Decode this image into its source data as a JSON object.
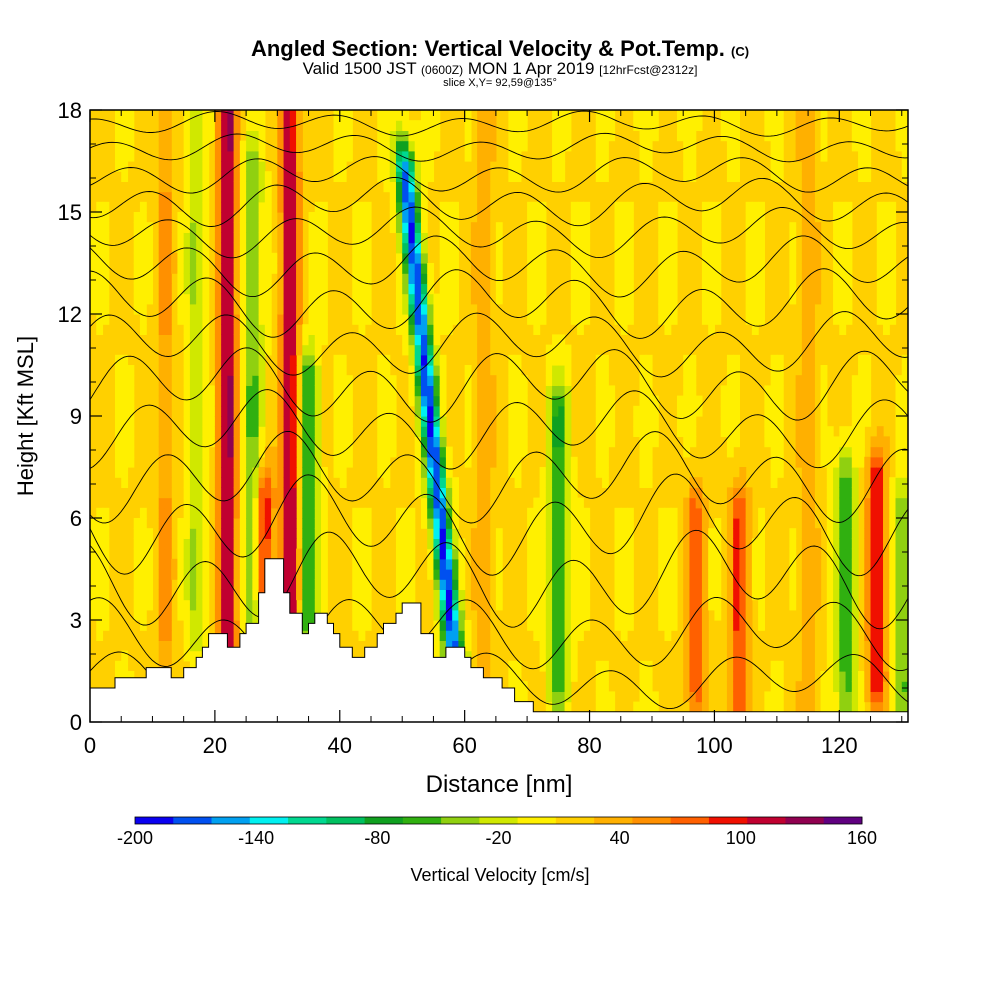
{
  "header": {
    "title_main": "Angled Section: Vertical Velocity & Pot.Temp.",
    "title_suffix": "(C)",
    "subtitle_a": "Valid 1500 JST",
    "subtitle_b": "(0600Z)",
    "subtitle_c": "MON 1 Apr 2019",
    "subtitle_d": "[12hrFcst@2312z]",
    "slice_label": "slice X,Y= 92,59@135°"
  },
  "chart_data": {
    "type": "heatmap",
    "xlabel": "Distance [nm]",
    "ylabel": "Height [Kft MSL]",
    "xlim": [
      0,
      131
    ],
    "ylim": [
      0,
      18
    ],
    "x_ticks": [
      "0",
      "20",
      "40",
      "60",
      "80",
      "100",
      "120"
    ],
    "y_ticks": [
      "0",
      "3",
      "6",
      "9",
      "12",
      "15",
      "18"
    ],
    "colorbar": {
      "label": "Vertical Velocity [cm/s]",
      "range": [
        -200,
        160
      ],
      "ticks": [
        "-200",
        "-140",
        "-80",
        "-20",
        "40",
        "100",
        "160"
      ],
      "colors": [
        "#0a00f0",
        "#0050f0",
        "#00a0f0",
        "#00f0f0",
        "#00d890",
        "#00c060",
        "#10a020",
        "#30b010",
        "#90d010",
        "#d0e800",
        "#fff000",
        "#ffd000",
        "#ffb000",
        "#ff9000",
        "#ff6000",
        "#f01000",
        "#c00030",
        "#900050",
        "#600080"
      ]
    },
    "updrafts": [
      {
        "x": 22,
        "z0": 2.5,
        "z1": 18,
        "peak": 120
      },
      {
        "x": 32,
        "z0": 3,
        "z1": 18,
        "peak": 110
      },
      {
        "x": 28,
        "z0": 4,
        "z1": 6.5,
        "peak": 90
      },
      {
        "x": 97,
        "z0": 1,
        "z1": 6,
        "peak": 70
      },
      {
        "x": 104,
        "z0": 0.5,
        "z1": 6,
        "peak": 80
      },
      {
        "x": 126,
        "z0": 1.5,
        "z1": 7,
        "peak": 100
      },
      {
        "x": 12,
        "z0": 1.5,
        "z1": 18,
        "peak": 40
      },
      {
        "x": 63,
        "z0": 2,
        "z1": 18,
        "peak": 35
      },
      {
        "x": 115,
        "z0": 1,
        "z1": 18,
        "peak": 35
      }
    ],
    "downdrafts": [
      {
        "x": 55,
        "z0": 2,
        "z1": 16,
        "peak": -190
      },
      {
        "x": 35,
        "z0": 3,
        "z1": 10,
        "peak": -80
      },
      {
        "x": 26,
        "z0": 3,
        "z1": 16,
        "peak": -60
      },
      {
        "x": 75,
        "z0": 1.5,
        "z1": 9,
        "peak": -80
      },
      {
        "x": 121,
        "z0": 1,
        "z1": 7,
        "peak": -70
      },
      {
        "x": 130,
        "z0": 1,
        "z1": 6,
        "peak": -60
      },
      {
        "x": 17,
        "z0": 3,
        "z1": 18,
        "peak": -40
      }
    ],
    "terrain": [
      [
        0,
        1
      ],
      [
        4,
        1
      ],
      [
        4,
        1.3
      ],
      [
        9,
        1.3
      ],
      [
        9,
        1.6
      ],
      [
        13,
        1.6
      ],
      [
        13,
        1.3
      ],
      [
        15,
        1.3
      ],
      [
        15,
        1.6
      ],
      [
        17,
        1.6
      ],
      [
        17,
        1.9
      ],
      [
        18,
        1.9
      ],
      [
        18,
        2.2
      ],
      [
        19,
        2.2
      ],
      [
        19,
        2.6
      ],
      [
        22,
        2.6
      ],
      [
        22,
        2.2
      ],
      [
        24,
        2.2
      ],
      [
        24,
        2.6
      ],
      [
        25,
        2.6
      ],
      [
        25,
        2.9
      ],
      [
        27,
        2.9
      ],
      [
        27,
        3.8
      ],
      [
        28,
        3.8
      ],
      [
        28,
        4.8
      ],
      [
        31,
        4.8
      ],
      [
        31,
        3.8
      ],
      [
        32,
        3.8
      ],
      [
        32,
        3.2
      ],
      [
        34,
        3.2
      ],
      [
        34,
        2.6
      ],
      [
        35,
        2.6
      ],
      [
        35,
        2.9
      ],
      [
        36,
        2.9
      ],
      [
        36,
        3.2
      ],
      [
        38,
        3.2
      ],
      [
        38,
        2.9
      ],
      [
        39,
        2.9
      ],
      [
        39,
        2.6
      ],
      [
        40,
        2.6
      ],
      [
        40,
        2.2
      ],
      [
        42,
        2.2
      ],
      [
        42,
        1.9
      ],
      [
        44,
        1.9
      ],
      [
        44,
        2.2
      ],
      [
        46,
        2.2
      ],
      [
        46,
        2.6
      ],
      [
        47,
        2.6
      ],
      [
        47,
        2.9
      ],
      [
        49,
        2.9
      ],
      [
        49,
        3.2
      ],
      [
        50,
        3.2
      ],
      [
        50,
        3.5
      ],
      [
        53,
        3.5
      ],
      [
        53,
        2.6
      ],
      [
        55,
        2.6
      ],
      [
        55,
        1.9
      ],
      [
        57,
        1.9
      ],
      [
        57,
        2.2
      ],
      [
        60,
        2.2
      ],
      [
        60,
        1.9
      ],
      [
        61,
        1.9
      ],
      [
        61,
        1.6
      ],
      [
        63,
        1.6
      ],
      [
        63,
        1.3
      ],
      [
        66,
        1.3
      ],
      [
        66,
        1
      ],
      [
        68,
        1
      ],
      [
        68,
        0.6
      ],
      [
        71,
        0.6
      ],
      [
        71,
        0.3
      ],
      [
        131,
        0.3
      ]
    ],
    "theta_lines": [
      {
        "base": 1.2,
        "amp": 0.6
      },
      {
        "base": 2.6,
        "amp": 0.8
      },
      {
        "base": 4.2,
        "amp": 1.0
      },
      {
        "base": 5.8,
        "amp": 1.0
      },
      {
        "base": 7.2,
        "amp": 0.9
      },
      {
        "base": 8.6,
        "amp": 0.8
      },
      {
        "base": 9.9,
        "amp": 0.8
      },
      {
        "base": 11.1,
        "amp": 0.7
      },
      {
        "base": 12.3,
        "amp": 0.7
      },
      {
        "base": 13.4,
        "amp": 0.6
      },
      {
        "base": 14.4,
        "amp": 0.5
      },
      {
        "base": 15.3,
        "amp": 0.5
      },
      {
        "base": 16.1,
        "amp": 0.4
      },
      {
        "base": 16.9,
        "amp": 0.3
      },
      {
        "base": 17.6,
        "amp": 0.25
      }
    ]
  }
}
